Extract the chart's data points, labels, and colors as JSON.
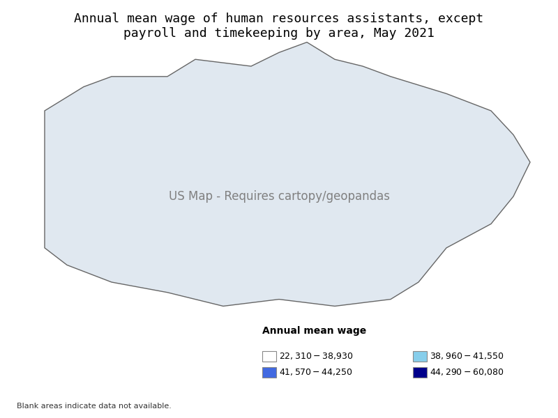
{
  "title": "Annual mean wage of human resources assistants, except\npayroll and timekeeping by area, May 2021",
  "legend_title": "Annual mean wage",
  "legend_entries": [
    {
      "label": "$22,310 - $38,930",
      "color": "#ffffff",
      "edgecolor": "#888888"
    },
    {
      "label": "$38,960 - $41,550",
      "color": "#87CEEB",
      "edgecolor": "#888888"
    },
    {
      "label": "$41,570 - $44,250",
      "color": "#4169E1",
      "edgecolor": "#888888"
    },
    {
      "label": "$44,290 - $60,080",
      "color": "#00008B",
      "edgecolor": "#888888"
    }
  ],
  "blank_note": "Blank areas indicate data not available.",
  "background_color": "#ffffff",
  "title_fontsize": 13,
  "legend_fontsize": 9
}
